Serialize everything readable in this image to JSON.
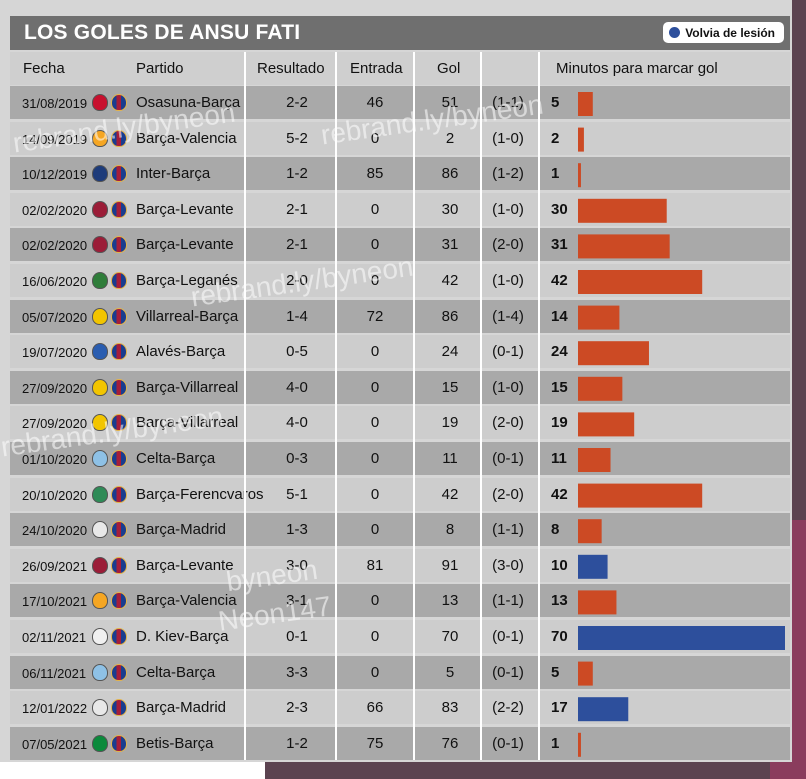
{
  "title": "LOS GOLES DE ANSU FATI",
  "legend_label": "Volvia de lesión",
  "colors": {
    "normal": "#cc4a24",
    "after_injury": "#2d4f9c"
  },
  "headers": {
    "fecha": "Fecha",
    "partido": "Partido",
    "resultado": "Resultado",
    "entrada": "Entrada",
    "gol": "Gol",
    "minutos": "Minutos para marcar gol"
  },
  "watermarks": [
    "rebrand.ly/byneon",
    "rebrand.ly/byneon",
    "rebrand.ly/byneon",
    "rebrand.ly/byneon",
    "byneon",
    "Neon147"
  ],
  "chart_data": {
    "type": "bar",
    "title": "LOS GOLES DE ANSU FATI",
    "xlabel": "Minutos para marcar gol",
    "xlim": [
      0,
      70
    ],
    "series_legend": [
      "Volvia de lesión"
    ],
    "rows": [
      {
        "fecha": "31/08/2019",
        "partido": "Osasuna-Barça",
        "resultado": "2-2",
        "entrada": "46",
        "gol": "51",
        "marcador": "(1-1)",
        "minutos": 5,
        "volvia": false,
        "opp": "#c8102e"
      },
      {
        "fecha": "14/09/2019",
        "partido": "Barça-Valencia",
        "resultado": "5-2",
        "entrada": "0",
        "gol": "2",
        "marcador": "(1-0)",
        "minutos": 2,
        "volvia": false,
        "opp": "#f5a623"
      },
      {
        "fecha": "10/12/2019",
        "partido": "Inter-Barça",
        "resultado": "1-2",
        "entrada": "85",
        "gol": "86",
        "marcador": "(1-2)",
        "minutos": 1,
        "volvia": false,
        "opp": "#1d3b7a"
      },
      {
        "fecha": "02/02/2020",
        "partido": "Barça-Levante",
        "resultado": "2-1",
        "entrada": "0",
        "gol": "30",
        "marcador": "(1-0)",
        "minutos": 30,
        "volvia": false,
        "opp": "#9b1d38"
      },
      {
        "fecha": "02/02/2020",
        "partido": "Barça-Levante",
        "resultado": "2-1",
        "entrada": "0",
        "gol": "31",
        "marcador": "(2-0)",
        "minutos": 31,
        "volvia": false,
        "opp": "#9b1d38"
      },
      {
        "fecha": "16/06/2020",
        "partido": "Barça-Leganés",
        "resultado": "2-0",
        "entrada": "0",
        "gol": "42",
        "marcador": "(1-0)",
        "minutos": 42,
        "volvia": false,
        "opp": "#2f7d3a"
      },
      {
        "fecha": "05/07/2020",
        "partido": "Villarreal-Barça",
        "resultado": "1-4",
        "entrada": "72",
        "gol": "86",
        "marcador": "(1-4)",
        "minutos": 14,
        "volvia": false,
        "opp": "#f2c500"
      },
      {
        "fecha": "19/07/2020",
        "partido": "Alavés-Barça",
        "resultado": "0-5",
        "entrada": "0",
        "gol": "24",
        "marcador": "(0-1)",
        "minutos": 24,
        "volvia": false,
        "opp": "#2a5db0"
      },
      {
        "fecha": "27/09/2020",
        "partido": "Barça-Villarreal",
        "resultado": "4-0",
        "entrada": "0",
        "gol": "15",
        "marcador": "(1-0)",
        "minutos": 15,
        "volvia": false,
        "opp": "#f2c500"
      },
      {
        "fecha": "27/09/2020",
        "partido": "Barça-Villarreal",
        "resultado": "4-0",
        "entrada": "0",
        "gol": "19",
        "marcador": "(2-0)",
        "minutos": 19,
        "volvia": false,
        "opp": "#f2c500"
      },
      {
        "fecha": "01/10/2020",
        "partido": "Celta-Barça",
        "resultado": "0-3",
        "entrada": "0",
        "gol": "11",
        "marcador": "(0-1)",
        "minutos": 11,
        "volvia": false,
        "opp": "#8ec1e6"
      },
      {
        "fecha": "20/10/2020",
        "partido": "Barça-Ferencvaros",
        "resultado": "5-1",
        "entrada": "0",
        "gol": "42",
        "marcador": "(2-0)",
        "minutos": 42,
        "volvia": false,
        "opp": "#2e8b57"
      },
      {
        "fecha": "24/10/2020",
        "partido": "Barça-Madrid",
        "resultado": "1-3",
        "entrada": "0",
        "gol": "8",
        "marcador": "(1-1)",
        "minutos": 8,
        "volvia": false,
        "opp": "#e8e8e8"
      },
      {
        "fecha": "26/09/2021",
        "partido": "Barça-Levante",
        "resultado": "3-0",
        "entrada": "81",
        "gol": "91",
        "marcador": "(3-0)",
        "minutos": 10,
        "volvia": true,
        "opp": "#9b1d38"
      },
      {
        "fecha": "17/10/2021",
        "partido": "Barça-Valencia",
        "resultado": "3-1",
        "entrada": "0",
        "gol": "13",
        "marcador": "(1-1)",
        "minutos": 13,
        "volvia": false,
        "opp": "#f5a623"
      },
      {
        "fecha": "02/11/2021",
        "partido": "D. Kiev-Barça",
        "resultado": "0-1",
        "entrada": "0",
        "gol": "70",
        "marcador": "(0-1)",
        "minutos": 70,
        "volvia": true,
        "opp": "#f0f0f0"
      },
      {
        "fecha": "06/11/2021",
        "partido": "Celta-Barça",
        "resultado": "3-3",
        "entrada": "0",
        "gol": "5",
        "marcador": "(0-1)",
        "minutos": 5,
        "volvia": false,
        "opp": "#8ec1e6"
      },
      {
        "fecha": "12/01/2022",
        "partido": "Barça-Madrid",
        "resultado": "2-3",
        "entrada": "66",
        "gol": "83",
        "marcador": "(2-2)",
        "minutos": 17,
        "volvia": true,
        "opp": "#e8e8e8"
      },
      {
        "fecha": "07/05/2021",
        "partido": "Betis-Barça",
        "resultado": "1-2",
        "entrada": "75",
        "gol": "76",
        "marcador": "(0-1)",
        "minutos": 1,
        "volvia": false,
        "opp": "#0b8a3c"
      }
    ]
  }
}
